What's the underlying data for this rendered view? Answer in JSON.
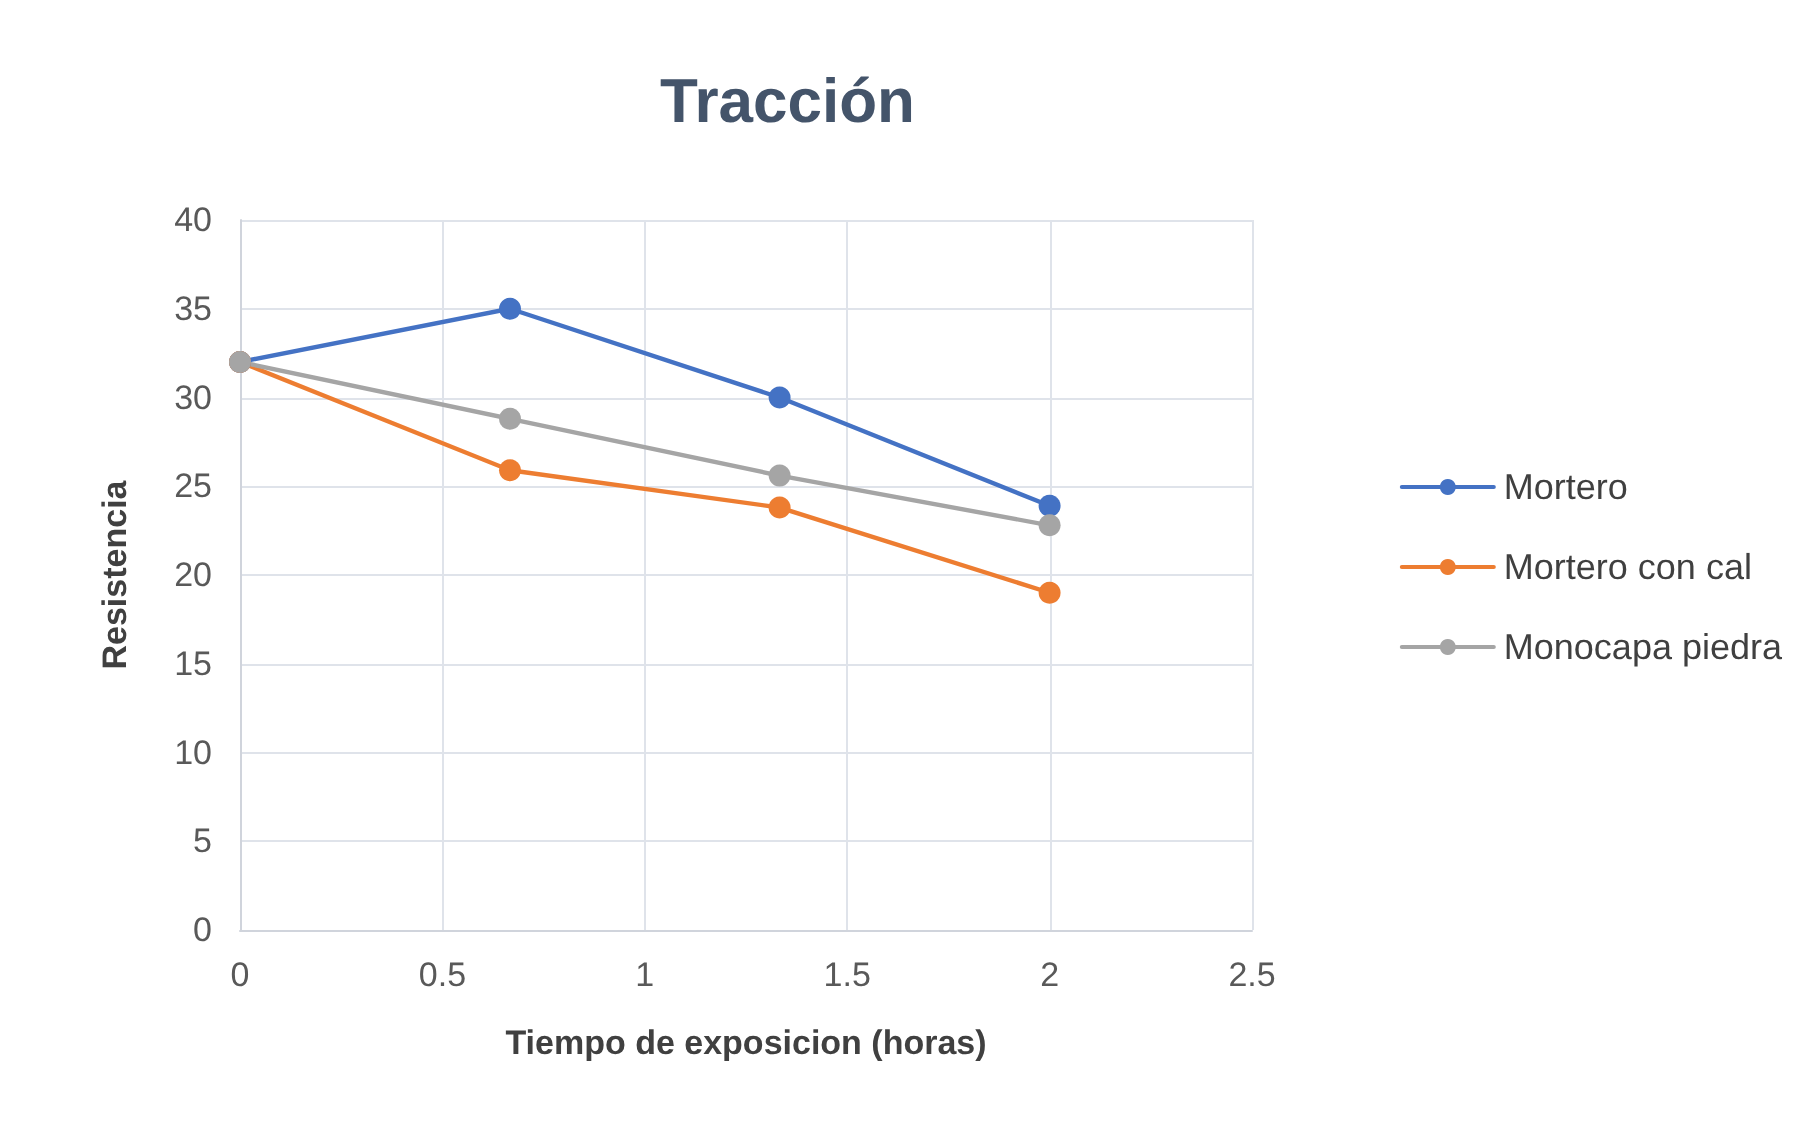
{
  "chart_data": {
    "type": "line",
    "title": "Tracción",
    "xlabel": "Tiempo de exposicion (horas)",
    "ylabel": "Resistencia",
    "x": [
      0,
      0.667,
      1.333,
      2
    ],
    "series": [
      {
        "name": "Mortero",
        "color": "#4472c4",
        "values": [
          32,
          35,
          30,
          23.9
        ]
      },
      {
        "name": "Mortero con cal",
        "color": "#ed7d31",
        "values": [
          32,
          25.9,
          23.8,
          19.0
        ]
      },
      {
        "name": "Monocapa piedra",
        "color": "#a5a5a5",
        "values": [
          32,
          28.8,
          25.6,
          22.8
        ]
      }
    ],
    "xlim": [
      0,
      2.5
    ],
    "xticks": [
      0,
      0.5,
      1,
      1.5,
      2,
      2.5
    ],
    "ylim": [
      0,
      40
    ],
    "yticks": [
      0,
      5,
      10,
      15,
      20,
      25,
      30,
      35,
      40
    ],
    "grid": true,
    "legend": "right",
    "marker": "circle",
    "line_style": "solid"
  }
}
